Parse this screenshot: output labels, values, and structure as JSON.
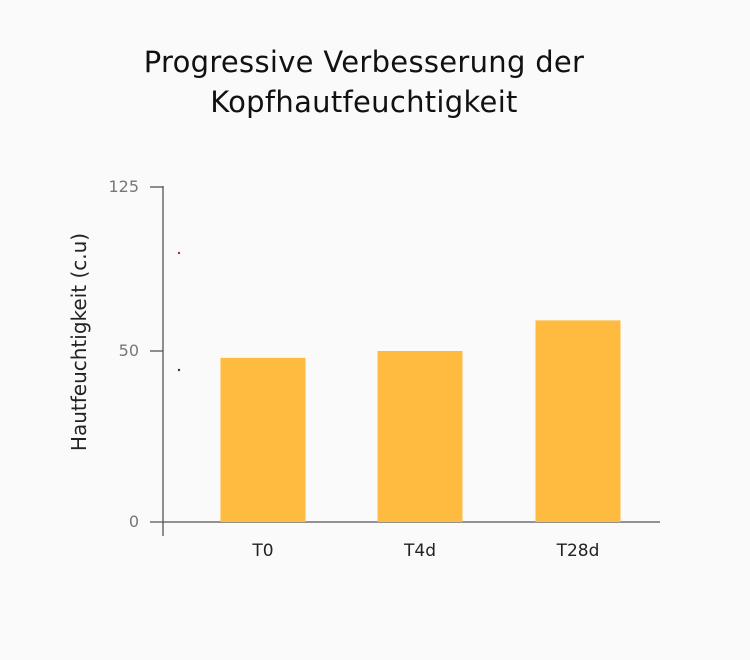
{
  "chart_data": {
    "type": "bar",
    "title_lines": [
      "Progressive Verbesserung der",
      "Kopfhautfeuchtigkeit"
    ],
    "ylabel": "Hautfeuchtigkeit (c.u)",
    "xlabel": "",
    "categories": [
      "T0",
      "T4d",
      "T28d"
    ],
    "values": [
      48,
      50,
      64
    ],
    "yticks": [
      0,
      50,
      125
    ],
    "ylim": [
      0,
      125
    ],
    "grid": false,
    "bar_color": "#ffbb3f",
    "axis_color": "#555555"
  }
}
